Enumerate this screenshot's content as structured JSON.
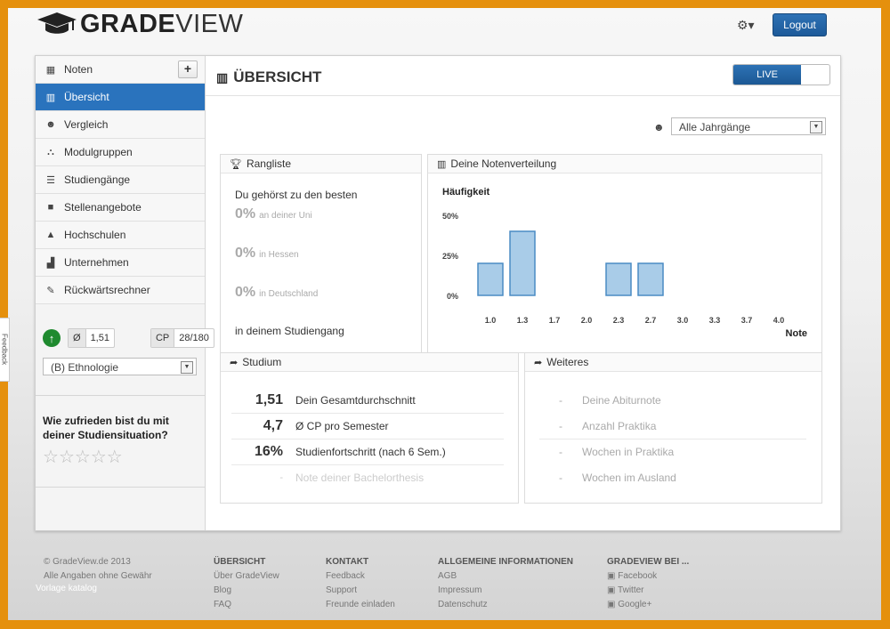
{
  "header": {
    "logo_bold": "GRADE",
    "logo_thin": "VIEW",
    "logout_label": "Logout"
  },
  "sidebar": {
    "items": [
      {
        "label": "Noten",
        "icon": "table-icon"
      },
      {
        "label": "Übersicht",
        "icon": "bar-chart-icon",
        "active": true
      },
      {
        "label": "Vergleich",
        "icon": "users-icon"
      },
      {
        "label": "Modulgruppen",
        "icon": "sitemap-icon"
      },
      {
        "label": "Studiengänge",
        "icon": "list-icon"
      },
      {
        "label": "Stellenangebote",
        "icon": "briefcase-icon"
      },
      {
        "label": "Hochschulen",
        "icon": "graduation-cap-icon"
      },
      {
        "label": "Unternehmen",
        "icon": "factory-icon"
      },
      {
        "label": "Rückwärtsrechner",
        "icon": "wrench-icon"
      }
    ],
    "plus_label": "+",
    "avg_label": "Ø",
    "avg_value": "1,51",
    "cp_label": "CP",
    "cp_value": "28/180",
    "program_select": "(B) Ethnologie",
    "survey_question": "Wie zufrieden bist du mit deiner Studiensituation?",
    "survey_rating": 0,
    "survey_max": 5
  },
  "feedback_tab": "Feedback",
  "main": {
    "title": "ÜBERSICHT",
    "live_label": "LIVE",
    "year_filter": "Alle Jahrgänge",
    "rangliste": {
      "title": "Rangliste",
      "intro": "Du gehörst zu den besten",
      "rows": [
        {
          "value": "0%",
          "label": "an deiner Uni"
        },
        {
          "value": "0%",
          "label": "in Hessen"
        },
        {
          "value": "0%",
          "label": "in Deutschland"
        }
      ],
      "footer": "in deinem Studiengang"
    },
    "distribution": {
      "title": "Deine Notenverteilung"
    },
    "studium": {
      "title": "Studium",
      "rows": [
        {
          "value": "1,51",
          "label": "Dein Gesamtdurchschnitt"
        },
        {
          "value": "4,7",
          "label": "Ø CP pro Semester"
        },
        {
          "value": "16%",
          "label": "Studienfortschritt (nach 6 Sem.)"
        },
        {
          "value": "-",
          "label": "Note deiner Bachelorthesis"
        }
      ]
    },
    "weiteres": {
      "title": "Weiteres",
      "rows": [
        {
          "value": "-",
          "label": "Deine Abiturnote"
        },
        {
          "value": "-",
          "label": "Anzahl Praktika"
        },
        {
          "value": "-",
          "label": "Wochen in Praktika"
        },
        {
          "value": "-",
          "label": "Wochen im Ausland"
        }
      ]
    }
  },
  "chart_data": {
    "type": "bar",
    "ylabel": "Häufigkeit",
    "xlabel": "Note",
    "categories": [
      "1.0",
      "1.3",
      "1.7",
      "2.0",
      "2.3",
      "2.7",
      "3.0",
      "3.3",
      "3.7",
      "4.0"
    ],
    "values": [
      20,
      40,
      0,
      0,
      20,
      20,
      0,
      0,
      0,
      0
    ],
    "ytick_labels": [
      "0%",
      "25%",
      "50%"
    ],
    "ylim": [
      0,
      50
    ],
    "bar_color": "#a9cce8",
    "bar_border": "#4a8bc4"
  },
  "footer": {
    "copyright": "© GradeView.de 2013",
    "disclaimer": "Alle Angaben ohne Gewähr",
    "vorlage": "Vorlage katalog",
    "cols": [
      {
        "heading": "ÜBERSICHT",
        "links": [
          "Über GradeView",
          "Blog",
          "FAQ"
        ]
      },
      {
        "heading": "KONTAKT",
        "links": [
          "Feedback",
          "Support",
          "Freunde einladen"
        ]
      },
      {
        "heading": "ALLGEMEINE INFORMATIONEN",
        "links": [
          "AGB",
          "Impressum",
          "Datenschutz"
        ]
      },
      {
        "heading": "GRADEVIEW BEI ...",
        "links": [
          "Facebook",
          "Twitter",
          "Google+"
        ]
      }
    ]
  }
}
